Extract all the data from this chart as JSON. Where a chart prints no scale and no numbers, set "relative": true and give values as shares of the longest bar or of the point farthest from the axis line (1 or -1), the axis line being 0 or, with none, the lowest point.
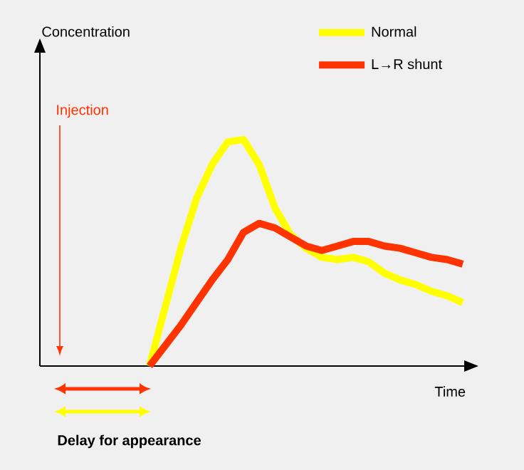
{
  "chart_data": {
    "type": "line",
    "relative": true,
    "xlabel": "Time",
    "categories": [
      null,
      null,
      null,
      null,
      null,
      null,
      null,
      null,
      null,
      null,
      null,
      null,
      null,
      null,
      null,
      null,
      null,
      null,
      null,
      null,
      null,
      null,
      null,
      null,
      null,
      null,
      null,
      null
    ],
    "series": [
      {
        "name": "Normal",
        "color": "#ffff00",
        "values": [
          null,
          null,
          null,
          null,
          null,
          null,
          null,
          0,
          0.26,
          0.52,
          0.74,
          0.89,
          0.99,
          1,
          0.89,
          0.7,
          0.58,
          0.52,
          0.48,
          0.47,
          0.48,
          0.46,
          0.41,
          0.38,
          0.36,
          0.33,
          0.31,
          0.28
        ]
      },
      {
        "name": "L→R shunt",
        "color": "#ff3300",
        "values": [
          null,
          null,
          null,
          null,
          null,
          null,
          null,
          0,
          0.09,
          0.18,
          0.28,
          0.38,
          0.47,
          0.59,
          0.63,
          0.61,
          0.57,
          0.53,
          0.51,
          0.53,
          0.55,
          0.55,
          0.53,
          0.52,
          0.5,
          0.48,
          0.47,
          0.45
        ]
      }
    ],
    "legend": "top right",
    "marker": "none",
    "line_style": "solid",
    "annotations": [
      "Concentration",
      "Injection",
      "Delay for appearance"
    ]
  }
}
